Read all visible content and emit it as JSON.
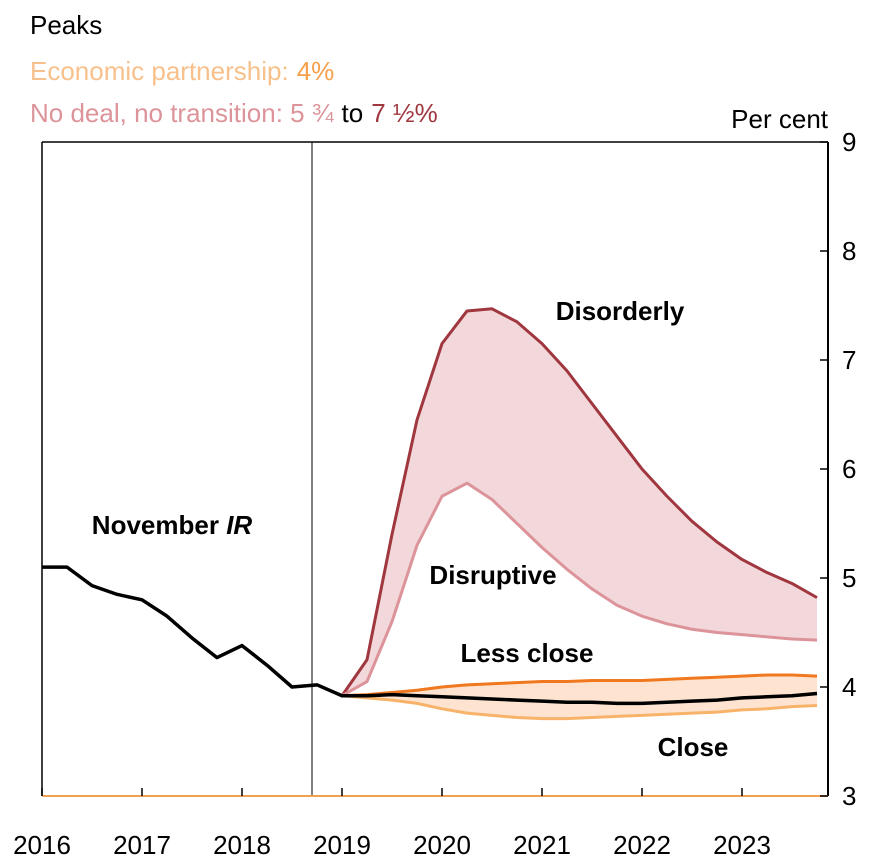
{
  "chart_data": {
    "type": "line",
    "title": "Peaks",
    "subtitle_lines": [
      [
        {
          "text": "Economic partnership:",
          "color": "#f8c08a"
        },
        {
          "text": "4%",
          "color": "#f5a04a"
        }
      ],
      [
        {
          "text": "No deal, no transition: 5 ¾",
          "color": "#dc949a"
        },
        {
          "text": "to",
          "color": "#000000"
        },
        {
          "text": "7 ½%",
          "color": "#a0373f"
        }
      ]
    ],
    "y_axis_label": "Per cent",
    "x": [
      2016,
      2016.25,
      2016.5,
      2016.75,
      2017,
      2017.25,
      2017.5,
      2017.75,
      2018,
      2018.25,
      2018.5,
      2018.75,
      2019,
      2019.25,
      2019.5,
      2019.75,
      2020,
      2020.25,
      2020.5,
      2020.75,
      2021,
      2021.25,
      2021.5,
      2021.75,
      2022,
      2022.25,
      2022.5,
      2022.75,
      2023,
      2023.25,
      2023.5,
      2023.75
    ],
    "series": [
      {
        "name": "Disorderly",
        "color": "#a0373f",
        "fill": "#f2d8da",
        "values": [
          null,
          null,
          null,
          null,
          null,
          null,
          null,
          null,
          null,
          null,
          null,
          null,
          3.92,
          4.25,
          5.4,
          6.45,
          7.15,
          7.45,
          7.47,
          7.35,
          7.15,
          6.9,
          6.6,
          6.3,
          6.0,
          5.75,
          5.52,
          5.33,
          5.17,
          5.05,
          4.95,
          4.82
        ]
      },
      {
        "name": "Disruptive",
        "color": "#dc949a",
        "values": [
          null,
          null,
          null,
          null,
          null,
          null,
          null,
          null,
          null,
          null,
          null,
          null,
          3.92,
          4.05,
          4.6,
          5.3,
          5.75,
          5.87,
          5.72,
          5.5,
          5.28,
          5.08,
          4.9,
          4.75,
          4.65,
          4.58,
          4.53,
          4.5,
          4.48,
          4.46,
          4.44,
          4.43
        ]
      },
      {
        "name": "Less close",
        "color": "#f0781e",
        "fill": "#fde3d0",
        "values": [
          null,
          null,
          null,
          null,
          null,
          null,
          null,
          null,
          null,
          null,
          null,
          null,
          3.92,
          3.93,
          3.95,
          3.97,
          4.0,
          4.02,
          4.03,
          4.04,
          4.05,
          4.05,
          4.06,
          4.06,
          4.06,
          4.07,
          4.08,
          4.09,
          4.1,
          4.11,
          4.11,
          4.1
        ]
      },
      {
        "name": "Close",
        "color": "#f8b36a",
        "values": [
          null,
          null,
          null,
          null,
          null,
          null,
          null,
          null,
          null,
          null,
          null,
          null,
          3.92,
          3.9,
          3.88,
          3.85,
          3.8,
          3.76,
          3.74,
          3.72,
          3.71,
          3.71,
          3.72,
          3.73,
          3.74,
          3.75,
          3.76,
          3.77,
          3.79,
          3.8,
          3.82,
          3.83
        ]
      },
      {
        "name": "November IR",
        "color": "#000000",
        "values": [
          5.1,
          5.1,
          4.93,
          4.85,
          4.8,
          4.65,
          4.45,
          4.27,
          4.38,
          4.2,
          4.0,
          4.02,
          3.92,
          3.92,
          3.93,
          3.92,
          3.91,
          3.9,
          3.89,
          3.88,
          3.87,
          3.86,
          3.86,
          3.85,
          3.85,
          3.86,
          3.87,
          3.88,
          3.9,
          3.91,
          3.92,
          3.94
        ]
      }
    ],
    "vline": 2018.7,
    "xlim": [
      2016,
      2023.86
    ],
    "xticks": [
      2016,
      2017,
      2018,
      2019,
      2020,
      2021,
      2022,
      2023
    ],
    "ylim": [
      3,
      9
    ],
    "yticks": [
      3,
      4,
      5,
      6,
      7,
      8,
      9
    ]
  }
}
